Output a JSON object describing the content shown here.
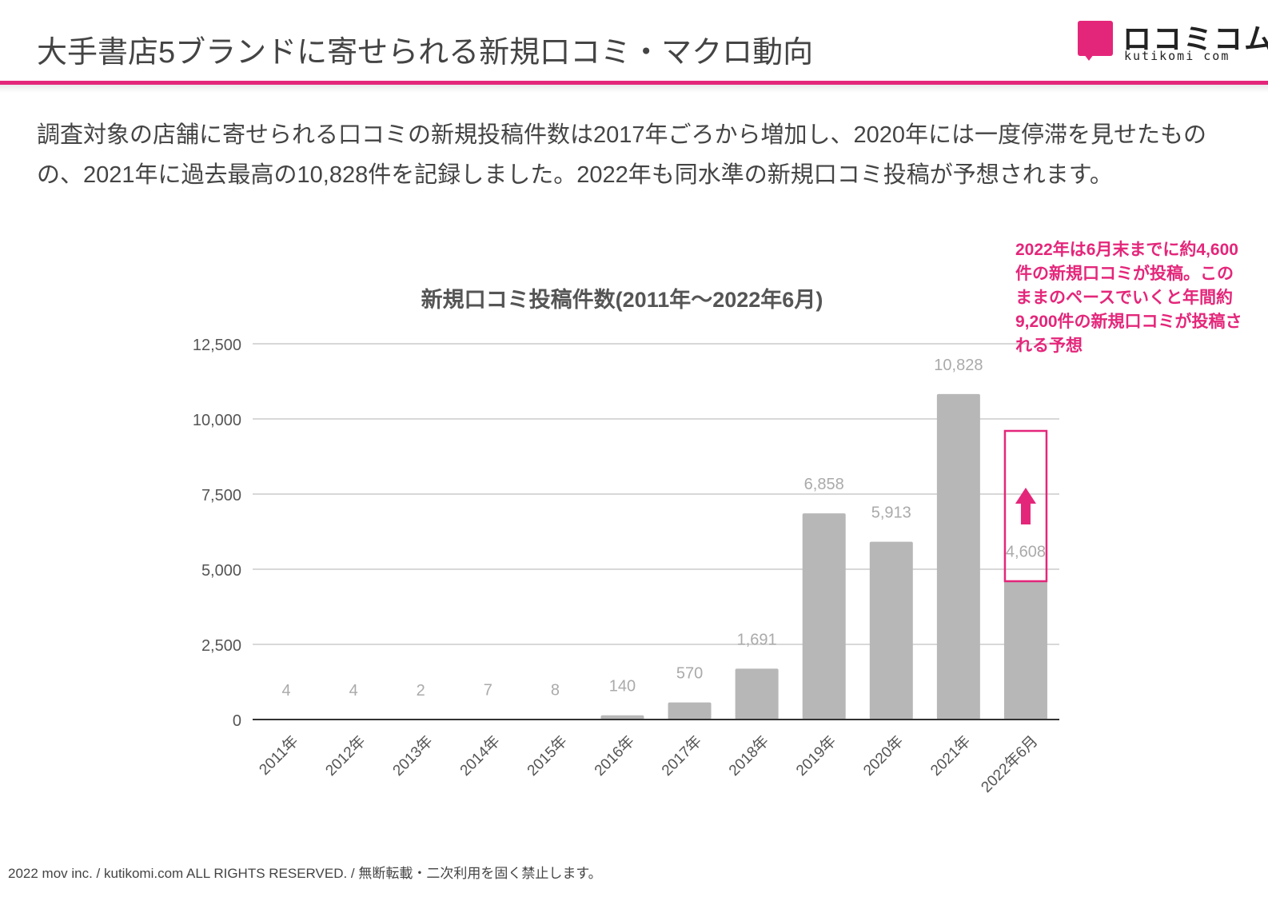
{
  "header": {
    "title": "大手書店5ブランドに寄せられる新規口コミ・マクロ動向",
    "logo_jp": "ロコミコム",
    "logo_en": "kutikomi com"
  },
  "summary": "調査対象の店舗に寄せられる口コミの新規投稿件数は2017年ごろから増加し、2020年には一度停滞を見せたものの、2021年に過去最高の10,828件を記録しました。2022年も同水準の新規口コミ投稿が予想されます。",
  "callout": "2022年は6月末までに約4,600件の新規口コミが投稿。このままのペースでいくと年間約9,200件の新規口コミが投稿される予想",
  "colors": {
    "accent": "#e4267a",
    "bar": "#b7b7b7",
    "grid": "#cccccc",
    "text": "#444444"
  },
  "chart_data": {
    "type": "bar",
    "title": "新規口コミ投稿件数(2011年〜2022年6月)",
    "categories": [
      "2011年",
      "2012年",
      "2013年",
      "2014年",
      "2015年",
      "2016年",
      "2017年",
      "2018年",
      "2019年",
      "2020年",
      "2021年",
      "2022年6月"
    ],
    "values": [
      4,
      4,
      2,
      7,
      8,
      140,
      570,
      1691,
      6858,
      5913,
      10828,
      4608
    ],
    "value_labels": [
      "4",
      "4",
      "2",
      "7",
      "8",
      "140",
      "570",
      "1,691",
      "6,858",
      "5,913",
      "10,828",
      "4,608"
    ],
    "yticks": [
      0,
      2500,
      5000,
      7500,
      10000,
      12500
    ],
    "ytick_labels": [
      "0",
      "2,500",
      "5,000",
      "7,500",
      "10,000",
      "12,500"
    ],
    "ylim": [
      0,
      12500
    ],
    "xlabel": "",
    "ylabel": "",
    "grid": true,
    "highlight_category": "2022年6月",
    "highlight_icon": "up-arrow-icon"
  },
  "footer": "2022 mov inc. / kutikomi.com ALL RIGHTS RESERVED. / 無断転載・二次利用を固く禁止します。"
}
